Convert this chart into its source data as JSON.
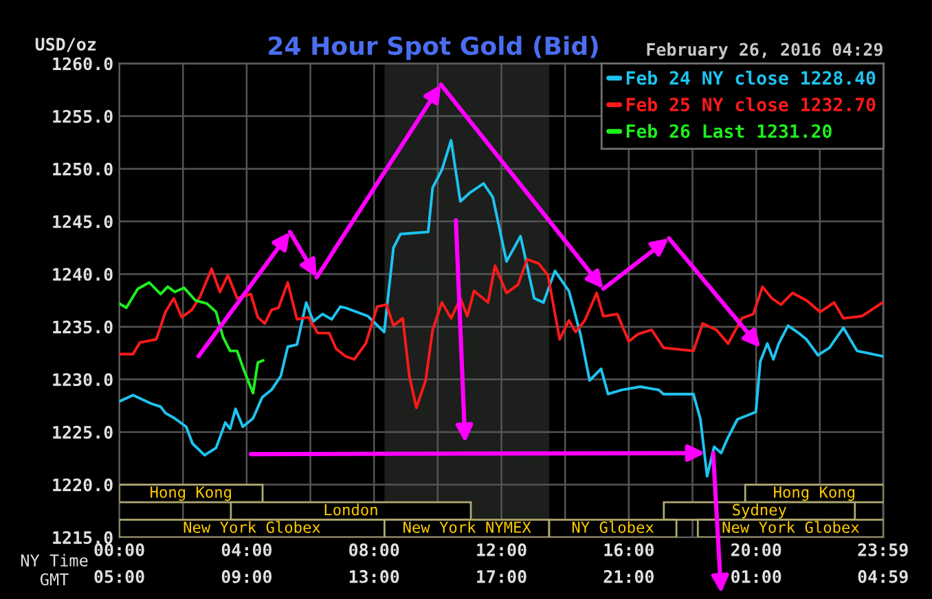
{
  "chart_data": {
    "type": "line",
    "title": "24 Hour Spot Gold (Bid)",
    "subtitle": "February 26, 2016 04:29",
    "ylabel": "USD/oz",
    "xlabel": "NY Time",
    "x2label": "GMT",
    "xlim": [
      0,
      24
    ],
    "x2lim": [
      "2016-02-26T05:00",
      "2016-02-27T05:00"
    ],
    "ylim": [
      1215,
      1260
    ],
    "yticks": [
      {
        "value": 1215,
        "label": "1215.0"
      },
      {
        "value": 1220,
        "label": "1220.0"
      },
      {
        "value": 1225,
        "label": "1225.0"
      },
      {
        "value": 1230,
        "label": "1230.0"
      },
      {
        "value": 1235,
        "label": "1235.0"
      },
      {
        "value": 1240,
        "label": "1240.0"
      },
      {
        "value": 1245,
        "label": "1245.0"
      },
      {
        "value": 1250,
        "label": "1250.0"
      },
      {
        "value": 1255,
        "label": "1255.0"
      },
      {
        "value": 1260,
        "label": "1260.0"
      }
    ],
    "xticks": [
      {
        "value": 0,
        "label": "00:00"
      },
      {
        "value": 2,
        "label": null
      },
      {
        "value": 4,
        "label": "04:00"
      },
      {
        "value": 6,
        "label": null
      },
      {
        "value": 8,
        "label": "08:00"
      },
      {
        "value": 10,
        "label": null
      },
      {
        "value": 12,
        "label": "12:00"
      },
      {
        "value": 14,
        "label": null
      },
      {
        "value": 16,
        "label": "16:00"
      },
      {
        "value": 18,
        "label": null
      },
      {
        "value": 20,
        "label": "20:00"
      },
      {
        "value": 22,
        "label": null
      },
      {
        "value": 23.983,
        "label": "23:59"
      }
    ],
    "x2ticks": [
      {
        "value": "2016-02-26T05:00",
        "label": "05:00"
      },
      {
        "value": "2016-02-26T09:00",
        "label": "09:00"
      },
      {
        "value": "2016-02-26T13:00",
        "label": "13:00"
      },
      {
        "value": "2016-02-26T17:00",
        "label": "17:00"
      },
      {
        "value": "2016-02-26T21:00",
        "label": "21:00"
      },
      {
        "value": "2016-02-27T01:00",
        "label": "01:00"
      },
      {
        "value": "2016-02-27T04:59",
        "label": "04:59"
      }
    ],
    "grid": true,
    "legend": "top right",
    "marker": "none",
    "line_style": "solid",
    "bands": [
      {
        "axis": "x",
        "from": 8.33,
        "to": 13.5,
        "color": "#1c1f1c"
      }
    ],
    "annotations": [
      "Hong Kong",
      "Hong Kong",
      "London",
      "Sydney",
      "New York Globex",
      "New York NYMEX",
      "NY Globex",
      "New York Globex"
    ],
    "series": [
      {
        "name": "Feb 24 NY close 1228.40",
        "color": "#1ec4f0",
        "x": [
          0,
          0.43,
          1.0,
          1.3,
          1.45,
          1.74,
          2.1,
          2.3,
          2.68,
          3.04,
          3.33,
          3.48,
          3.65,
          3.88,
          4.2,
          4.49,
          4.78,
          5.07,
          5.29,
          5.58,
          5.87,
          6.09,
          6.38,
          6.67,
          6.94,
          7.1,
          7.81,
          8.32,
          8.61,
          8.83,
          9.7,
          9.84,
          10.13,
          10.42,
          10.71,
          11.0,
          11.44,
          11.73,
          12.16,
          12.6,
          13.03,
          13.32,
          13.68,
          14.12,
          14.48,
          14.77,
          15.13,
          15.35,
          15.78,
          16.36,
          16.94,
          17.09,
          18.03,
          18.25,
          18.46,
          18.68,
          18.9,
          19.12,
          19.41,
          19.99,
          20.13,
          20.35,
          20.54,
          20.71,
          21.0,
          21.29,
          21.58,
          21.94,
          22.3,
          22.74,
          23.17,
          23.97
        ],
        "values": [
          1227.9,
          1228.5,
          1227.7,
          1227.4,
          1226.8,
          1226.3,
          1225.5,
          1223.9,
          1222.8,
          1223.5,
          1225.9,
          1225.3,
          1227.2,
          1225.5,
          1226.3,
          1228.3,
          1229.0,
          1230.3,
          1233.1,
          1233.3,
          1237.3,
          1235.5,
          1236.2,
          1235.7,
          1236.9,
          1236.8,
          1236.0,
          1234.5,
          1242.5,
          1243.8,
          1244.0,
          1248.2,
          1249.9,
          1252.7,
          1246.9,
          1247.7,
          1248.6,
          1247.3,
          1241.2,
          1243.6,
          1237.7,
          1237.3,
          1240.3,
          1238.4,
          1234.3,
          1229.9,
          1231.0,
          1228.6,
          1229.0,
          1229.3,
          1229.0,
          1228.6,
          1228.6,
          1226.2,
          1220.8,
          1223.6,
          1223.0,
          1224.5,
          1226.2,
          1226.9,
          1231.7,
          1233.4,
          1231.9,
          1233.4,
          1235.1,
          1234.5,
          1233.8,
          1232.3,
          1233.0,
          1234.9,
          1232.7,
          1232.2
        ]
      },
      {
        "name": "Feb 25 NY close 1232.70",
        "color": "#ff1a1a",
        "x": [
          0,
          0.43,
          0.65,
          1.16,
          1.45,
          1.71,
          1.96,
          2.28,
          2.54,
          2.9,
          3.16,
          3.41,
          3.7,
          4.13,
          4.35,
          4.57,
          4.78,
          5.0,
          5.29,
          5.58,
          5.94,
          6.23,
          6.59,
          6.81,
          7.1,
          7.38,
          7.74,
          8.1,
          8.39,
          8.61,
          8.9,
          9.11,
          9.33,
          9.62,
          9.84,
          10.13,
          10.42,
          10.71,
          10.93,
          11.14,
          11.58,
          11.8,
          12.16,
          12.52,
          12.81,
          13.17,
          13.46,
          13.83,
          14.12,
          14.33,
          14.62,
          14.99,
          15.2,
          15.64,
          16.0,
          16.29,
          16.72,
          17.09,
          18.03,
          18.32,
          18.75,
          19.12,
          19.55,
          19.91,
          20.2,
          20.49,
          20.78,
          21.14,
          21.58,
          22.01,
          22.45,
          22.74,
          23.32,
          23.97
        ],
        "values": [
          1232.4,
          1232.4,
          1233.5,
          1233.8,
          1236.4,
          1237.7,
          1235.9,
          1236.6,
          1237.9,
          1240.5,
          1238.3,
          1239.9,
          1237.7,
          1238.1,
          1235.9,
          1235.3,
          1236.6,
          1236.8,
          1239.2,
          1235.7,
          1235.9,
          1234.4,
          1234.4,
          1232.9,
          1232.2,
          1231.9,
          1233.4,
          1236.9,
          1237.1,
          1235.1,
          1235.8,
          1230.3,
          1227.3,
          1229.9,
          1234.7,
          1237.3,
          1235.8,
          1237.7,
          1236.0,
          1238.4,
          1237.3,
          1240.8,
          1238.2,
          1239.0,
          1241.4,
          1241.0,
          1239.9,
          1233.8,
          1235.6,
          1234.5,
          1235.6,
          1238.2,
          1236.0,
          1236.2,
          1233.6,
          1234.3,
          1234.7,
          1233.0,
          1232.7,
          1235.3,
          1234.7,
          1233.4,
          1235.8,
          1236.2,
          1238.8,
          1237.7,
          1237.1,
          1238.2,
          1237.5,
          1236.4,
          1237.3,
          1235.8,
          1236.0,
          1237.3
        ]
      },
      {
        "name": "Feb 26 Last 1231.20",
        "color": "#1ef01e",
        "x": [
          0,
          0.22,
          0.58,
          0.94,
          1.3,
          1.52,
          1.74,
          2.03,
          2.39,
          2.75,
          3.04,
          3.26,
          3.48,
          3.7,
          3.91,
          4.2,
          4.35,
          4.52
        ],
        "values": [
          1237.2,
          1236.8,
          1238.6,
          1239.2,
          1238.1,
          1238.8,
          1238.3,
          1238.7,
          1237.5,
          1237.2,
          1236.4,
          1234.0,
          1232.7,
          1232.7,
          1230.9,
          1228.7,
          1231.6,
          1231.8
        ]
      }
    ]
  }
}
